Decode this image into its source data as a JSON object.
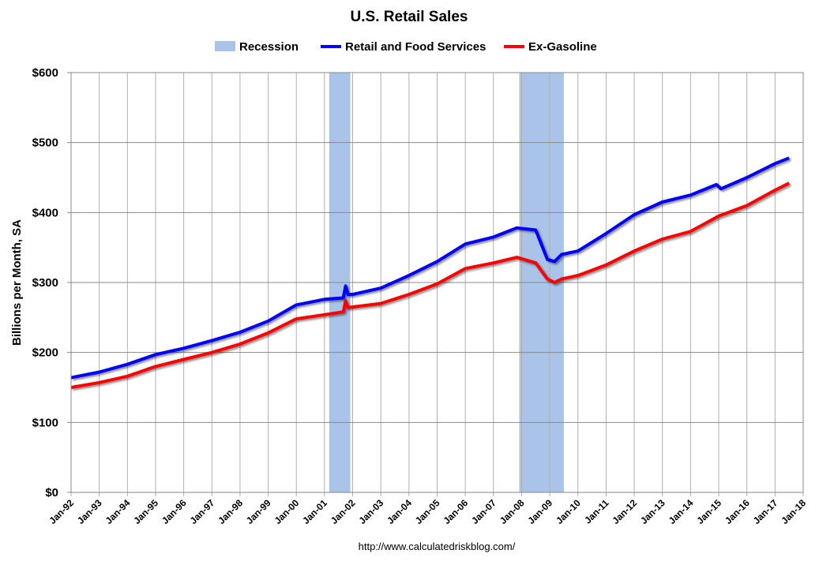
{
  "chart_data": {
    "type": "line",
    "title": "U.S. Retail Sales",
    "ylabel": "Billions per Month, SA",
    "xlabel": "",
    "source": "http://www.calculatedriskblog.com/",
    "ylim": [
      0,
      600
    ],
    "xlim": [
      "Jan-92",
      "Jan-18"
    ],
    "y_ticks": [
      "$0",
      "$100",
      "$200",
      "$300",
      "$400",
      "$500",
      "$600"
    ],
    "x_ticks": [
      "Jan-92",
      "Jan-93",
      "Jan-94",
      "Jan-95",
      "Jan-96",
      "Jan-97",
      "Jan-98",
      "Jan-99",
      "Jan-00",
      "Jan-01",
      "Jan-02",
      "Jan-03",
      "Jan-04",
      "Jan-05",
      "Jan-06",
      "Jan-07",
      "Jan-08",
      "Jan-09",
      "Jan-10",
      "Jan-11",
      "Jan-12",
      "Jan-13",
      "Jan-14",
      "Jan-15",
      "Jan-16",
      "Jan-17",
      "Jan-18"
    ],
    "grid": true,
    "legend_position": "top",
    "legend": [
      {
        "name": "Recession",
        "color": "#a9c4e8",
        "kind": "band"
      },
      {
        "name": "Retail and Food Services",
        "color": "#0000ff",
        "kind": "line"
      },
      {
        "name": "Ex-Gasoline",
        "color": "#ff0000",
        "kind": "line"
      }
    ],
    "recessions": [
      {
        "start": "Mar-01",
        "end": "Nov-01"
      },
      {
        "start": "Dec-07",
        "end": "Jun-09"
      }
    ],
    "series": [
      {
        "name": "Retail and Food Services",
        "color": "#0000ff",
        "points": [
          [
            "Jan-92",
            164
          ],
          [
            "Jan-93",
            172
          ],
          [
            "Jan-94",
            183
          ],
          [
            "Jan-95",
            197
          ],
          [
            "Jan-96",
            206
          ],
          [
            "Jan-97",
            217
          ],
          [
            "Jan-98",
            229
          ],
          [
            "Jan-99",
            245
          ],
          [
            "Jan-00",
            268
          ],
          [
            "Jan-01",
            276
          ],
          [
            "Sep-01",
            278
          ],
          [
            "Oct-01",
            295
          ],
          [
            "Nov-01",
            283
          ],
          [
            "Jan-02",
            283
          ],
          [
            "Jan-03",
            292
          ],
          [
            "Jan-04",
            310
          ],
          [
            "Jan-05",
            330
          ],
          [
            "Jan-06",
            355
          ],
          [
            "Jan-07",
            365
          ],
          [
            "Nov-07",
            378
          ],
          [
            "Jul-08",
            375
          ],
          [
            "Dec-08",
            333
          ],
          [
            "Mar-09",
            330
          ],
          [
            "Jun-09",
            340
          ],
          [
            "Jan-10",
            345
          ],
          [
            "Jan-11",
            370
          ],
          [
            "Jan-12",
            397
          ],
          [
            "Jan-13",
            415
          ],
          [
            "Jan-14",
            425
          ],
          [
            "Dec-14",
            440
          ],
          [
            "Feb-15",
            434
          ],
          [
            "Jan-16",
            450
          ],
          [
            "Jan-17",
            470
          ],
          [
            "Jul-17",
            478
          ]
        ]
      },
      {
        "name": "Ex-Gasoline",
        "color": "#ff0000",
        "points": [
          [
            "Jan-92",
            150
          ],
          [
            "Jan-93",
            157
          ],
          [
            "Jan-94",
            166
          ],
          [
            "Jan-95",
            180
          ],
          [
            "Jan-96",
            190
          ],
          [
            "Jan-97",
            200
          ],
          [
            "Jan-98",
            212
          ],
          [
            "Jan-99",
            228
          ],
          [
            "Jan-00",
            248
          ],
          [
            "Jan-01",
            254
          ],
          [
            "Sep-01",
            258
          ],
          [
            "Oct-01",
            274
          ],
          [
            "Nov-01",
            264
          ],
          [
            "Jan-02",
            265
          ],
          [
            "Jan-03",
            270
          ],
          [
            "Jan-04",
            283
          ],
          [
            "Jan-05",
            298
          ],
          [
            "Jan-06",
            320
          ],
          [
            "Jan-07",
            328
          ],
          [
            "Nov-07",
            336
          ],
          [
            "Jul-08",
            328
          ],
          [
            "Dec-08",
            305
          ],
          [
            "Mar-09",
            300
          ],
          [
            "Jun-09",
            305
          ],
          [
            "Jan-10",
            310
          ],
          [
            "Jan-11",
            325
          ],
          [
            "Jan-12",
            345
          ],
          [
            "Jan-13",
            362
          ],
          [
            "Jan-14",
            373
          ],
          [
            "Jan-15",
            395
          ],
          [
            "Jan-16",
            410
          ],
          [
            "Jan-17",
            432
          ],
          [
            "Jul-17",
            442
          ]
        ]
      }
    ]
  }
}
